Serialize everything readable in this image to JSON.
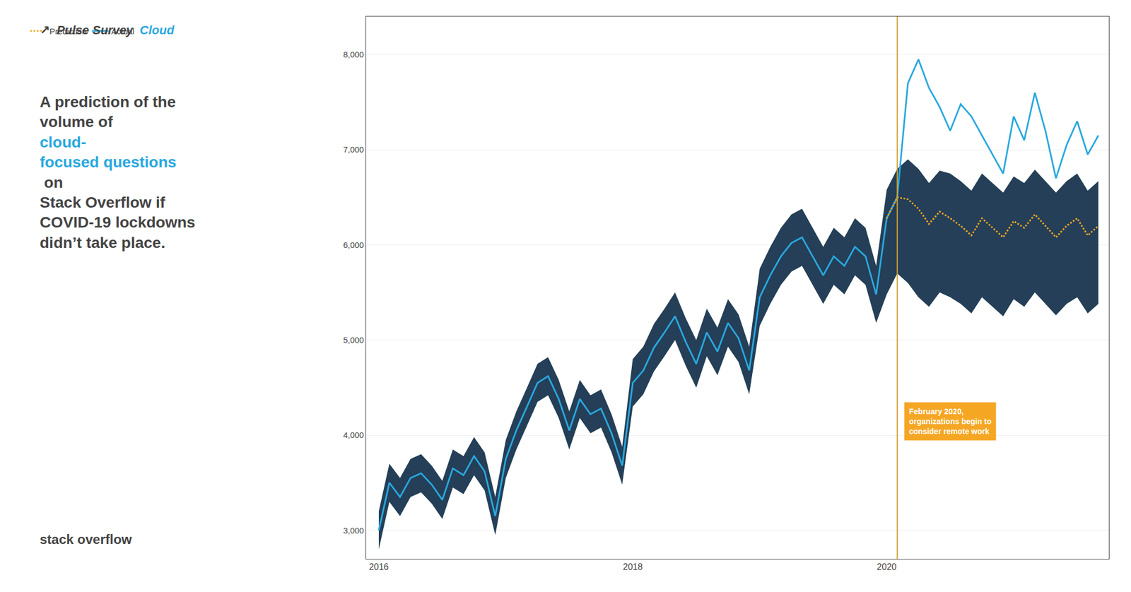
{
  "chart_data": {
    "type": "line",
    "header": [
      {
        "text": "↗"
      },
      {
        "text": "Pulse Survey"
      },
      {
        "text": "Cloud",
        "color": "#29a8e0"
      }
    ],
    "title": [
      {
        "text": "A prediction of the"
      },
      {
        "text": "volume of "
      },
      {
        "text": "cloud-",
        "color": "#29a8e0"
      },
      {
        "text": "focused questions",
        "color": "#29a8e0"
      },
      {
        "text": " on"
      },
      {
        "text": "Stack Overflow if"
      },
      {
        "text": "COVID-19 lockdowns"
      },
      {
        "text": "didn’t take place."
      }
    ],
    "footer": [
      {
        "text": "stack"
      },
      {
        "text": "overflow"
      }
    ],
    "x": [
      2016.0,
      2016.083,
      2016.167,
      2016.25,
      2016.333,
      2016.417,
      2016.5,
      2016.583,
      2016.667,
      2016.75,
      2016.833,
      2016.917,
      2017.0,
      2017.083,
      2017.167,
      2017.25,
      2017.333,
      2017.417,
      2017.5,
      2017.583,
      2017.667,
      2017.75,
      2017.833,
      2017.917,
      2018.0,
      2018.083,
      2018.167,
      2018.25,
      2018.333,
      2018.417,
      2018.5,
      2018.583,
      2018.667,
      2018.75,
      2018.833,
      2018.917,
      2019.0,
      2019.083,
      2019.167,
      2019.25,
      2019.333,
      2019.417,
      2019.5,
      2019.583,
      2019.667,
      2019.75,
      2019.833,
      2019.917,
      2020.0,
      2020.083,
      2020.167,
      2020.25,
      2020.333,
      2020.417,
      2020.5,
      2020.583,
      2020.667,
      2020.75,
      2020.833,
      2020.917,
      2021.0,
      2021.083,
      2021.167,
      2021.25,
      2021.333,
      2021.417,
      2021.5,
      2021.583,
      2021.667
    ],
    "xlim": [
      2015.9,
      2021.75
    ],
    "xticks": [
      2016,
      2018,
      2020
    ],
    "ylim": [
      2700,
      8400
    ],
    "yticks": [
      {
        "value": 3000,
        "label": "3,000"
      },
      {
        "value": 4000,
        "label": "4,000"
      },
      {
        "value": 5000,
        "label": "5,000"
      },
      {
        "value": 6000,
        "label": "6,000"
      },
      {
        "value": 7000,
        "label": "7,000"
      },
      {
        "value": 8000,
        "label": "8,000"
      }
    ],
    "series": [
      {
        "name": "Actual",
        "color": "#29a8e0",
        "line_style": "solid",
        "values": [
          3000,
          3500,
          3350,
          3550,
          3600,
          3480,
          3320,
          3650,
          3580,
          3780,
          3620,
          3150,
          3750,
          4050,
          4300,
          4550,
          4620,
          4380,
          4050,
          4380,
          4220,
          4280,
          4020,
          3680,
          4550,
          4680,
          4920,
          5080,
          5250,
          4980,
          4750,
          5080,
          4880,
          5180,
          5020,
          4680,
          5450,
          5680,
          5880,
          6020,
          6080,
          5880,
          5680,
          5880,
          5780,
          5980,
          5880,
          5480,
          6280,
          6500,
          7700,
          7950,
          7650,
          7450,
          7200,
          7480,
          7350,
          7150,
          6950,
          6750,
          7350,
          7100,
          7600,
          7200,
          6700,
          7050,
          7300,
          6950,
          7150
        ]
      },
      {
        "name": "Prediction",
        "color": "#f5a623",
        "line_style": "dotted",
        "values": [
          null,
          null,
          null,
          null,
          null,
          null,
          null,
          null,
          null,
          null,
          null,
          null,
          null,
          null,
          null,
          null,
          null,
          null,
          null,
          null,
          null,
          null,
          null,
          null,
          null,
          null,
          null,
          null,
          null,
          null,
          null,
          null,
          null,
          null,
          null,
          null,
          null,
          null,
          null,
          null,
          null,
          null,
          null,
          null,
          null,
          null,
          null,
          null,
          6280,
          6500,
          6480,
          6380,
          6220,
          6350,
          6280,
          6200,
          6100,
          6280,
          6180,
          6080,
          6250,
          6180,
          6320,
          6200,
          6080,
          6200,
          6280,
          6100,
          6200
        ]
      }
    ],
    "band": {
      "color": "#243f57",
      "upper": [
        3200,
        3700,
        3550,
        3750,
        3800,
        3680,
        3520,
        3850,
        3780,
        3980,
        3820,
        3350,
        3950,
        4250,
        4500,
        4750,
        4820,
        4580,
        4250,
        4580,
        4420,
        4480,
        4220,
        3880,
        4800,
        4930,
        5170,
        5330,
        5500,
        5230,
        5000,
        5330,
        5130,
        5430,
        5270,
        4930,
        5750,
        5980,
        6180,
        6320,
        6380,
        6180,
        5980,
        6180,
        6080,
        6280,
        6180,
        5780,
        6580,
        6800,
        6900,
        6800,
        6650,
        6780,
        6750,
        6670,
        6570,
        6750,
        6650,
        6550,
        6720,
        6650,
        6790,
        6670,
        6550,
        6670,
        6750,
        6570,
        6670
      ],
      "lower": [
        2800,
        3300,
        3150,
        3350,
        3400,
        3280,
        3120,
        3450,
        3380,
        3580,
        3420,
        2950,
        3550,
        3850,
        4100,
        4350,
        4420,
        4180,
        3850,
        4180,
        4020,
        4080,
        3820,
        3480,
        4300,
        4430,
        4670,
        4830,
        5000,
        4730,
        4500,
        4830,
        4630,
        4930,
        4770,
        4430,
        5150,
        5380,
        5580,
        5720,
        5780,
        5580,
        5380,
        5580,
        5480,
        5680,
        5580,
        5180,
        5480,
        5700,
        5600,
        5450,
        5350,
        5500,
        5450,
        5380,
        5280,
        5450,
        5350,
        5250,
        5430,
        5350,
        5500,
        5380,
        5260,
        5380,
        5450,
        5280,
        5380
      ]
    },
    "vline": {
      "x": 2020.083,
      "color": "#d4a030"
    },
    "annotations": [
      {
        "text": "February 2020,\norganizations begin to\nconsider remote work",
        "x": 2020.083,
        "y": 4350,
        "color": "#f5a623"
      }
    ],
    "grid": true,
    "legend": "upper left"
  }
}
